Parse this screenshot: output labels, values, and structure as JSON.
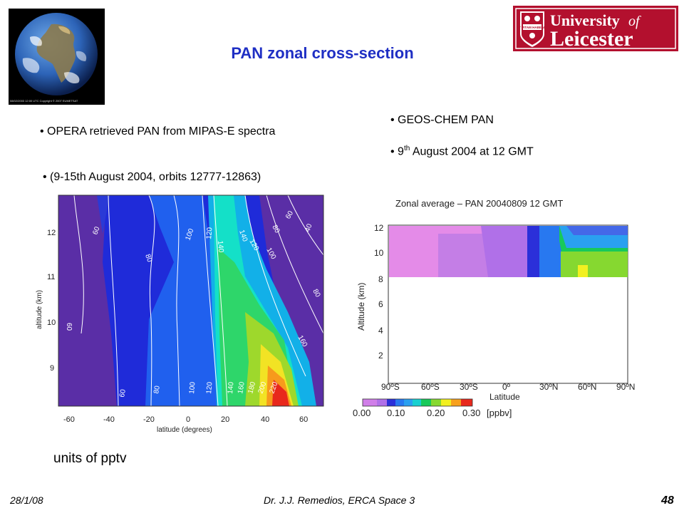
{
  "slide": {
    "title": "PAN zonal cross-section",
    "left_bullets": [
      "OPERA retrieved PAN from MIPAS-E spectra",
      "(9-15th August 2004, orbits 12777-12863)"
    ],
    "right_bullets": {
      "first": "GEOS-CHEM PAN",
      "date_day": "9",
      "date_sup": "th",
      "date_rest": " August 2004 at 12 GMT"
    },
    "units_note": "units of pptv",
    "footer": {
      "date": "28/1/08",
      "author": "Dr. J.J. Remedios, ERCA Space 3",
      "page": "48"
    }
  },
  "globe": {
    "caption": "08/02/2003  12:00 UTC  Copyright © 2007 EUMETSAT"
  },
  "logo": {
    "line1": "University",
    "of": "of",
    "line2": "Leicester",
    "motto": "UT VITAM HABEANT"
  },
  "left_plot": {
    "xlabel": "latitude (degrees)",
    "ylabel": "altitude (km)",
    "xticks": [
      "-60",
      "-40",
      "-20",
      "0",
      "20",
      "40",
      "60"
    ],
    "yticks": [
      "12",
      "11",
      "10",
      "9"
    ],
    "contour_labels": [
      "60",
      "80",
      "100",
      "120",
      "140",
      "140",
      "120",
      "80",
      "60",
      "40",
      "100",
      "60",
      "60",
      "80",
      "100",
      "120",
      "140",
      "160",
      "180",
      "200",
      "220",
      "160",
      "80"
    ]
  },
  "right_plot": {
    "title": "Zonal average – PAN 20040809 12 GMT",
    "ylabel": "Altitude (km)",
    "yticks": [
      "12",
      "10",
      "8",
      "6",
      "4",
      "2"
    ],
    "xticks": [
      "90ºS",
      "60ºS",
      "30ºS",
      "0º",
      "30ºN",
      "60ºN",
      "90ºN"
    ],
    "xlabel": "Latitude",
    "colorbar_ticks": [
      "0.00",
      "0.10",
      "0.20",
      "0.30"
    ],
    "colorbar_unit": "[ppbv]"
  },
  "colors": {
    "title": "#1f2fc4",
    "logo_bg": "#b3102e"
  }
}
